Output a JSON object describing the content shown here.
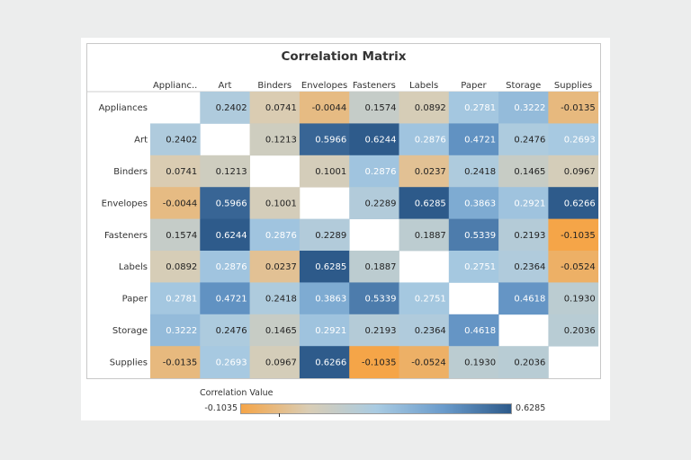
{
  "chart_data": {
    "type": "heatmap",
    "title": "Correlation Matrix",
    "columns": [
      "Applianc..",
      "Art",
      "Binders",
      "Envelopes",
      "Fasteners",
      "Labels",
      "Paper",
      "Storage",
      "Supplies"
    ],
    "rows": [
      "Appliances",
      "Art",
      "Binders",
      "Envelopes",
      "Fasteners",
      "Labels",
      "Paper",
      "Storage",
      "Supplies"
    ],
    "values": [
      [
        null,
        0.2402,
        0.0741,
        -0.0044,
        0.1574,
        0.0892,
        0.2781,
        0.3222,
        -0.0135
      ],
      [
        0.2402,
        null,
        0.1213,
        0.5966,
        0.6244,
        0.2876,
        0.4721,
        0.2476,
        0.2693
      ],
      [
        0.0741,
        0.1213,
        null,
        0.1001,
        0.2876,
        0.0237,
        0.2418,
        0.1465,
        0.0967
      ],
      [
        -0.0044,
        0.5966,
        0.1001,
        null,
        0.2289,
        0.6285,
        0.3863,
        0.2921,
        0.6266
      ],
      [
        0.1574,
        0.6244,
        0.2876,
        0.2289,
        null,
        0.1887,
        0.5339,
        0.2193,
        -0.1035
      ],
      [
        0.0892,
        0.2876,
        0.0237,
        0.6285,
        0.1887,
        null,
        0.2751,
        0.2364,
        -0.0524
      ],
      [
        0.2781,
        0.4721,
        0.2418,
        0.3863,
        0.5339,
        0.2751,
        null,
        0.4618,
        0.193
      ],
      [
        0.3222,
        0.2476,
        0.1465,
        0.2921,
        0.2193,
        0.2364,
        0.4618,
        null,
        0.2036
      ],
      [
        -0.0135,
        0.2693,
        0.0967,
        0.6266,
        -0.1035,
        -0.0524,
        0.193,
        0.2036,
        null
      ]
    ],
    "color_scale": {
      "min": -0.1035,
      "max": 0.6285,
      "colors": [
        "#f5a548",
        "#d9cdb5",
        "#a9cbe2",
        "#6a9bcb",
        "#2d5a8a"
      ]
    },
    "legend": {
      "title": "Correlation Value",
      "min_label": "-0.1035",
      "max_label": "0.6285",
      "position": "bottom"
    }
  }
}
